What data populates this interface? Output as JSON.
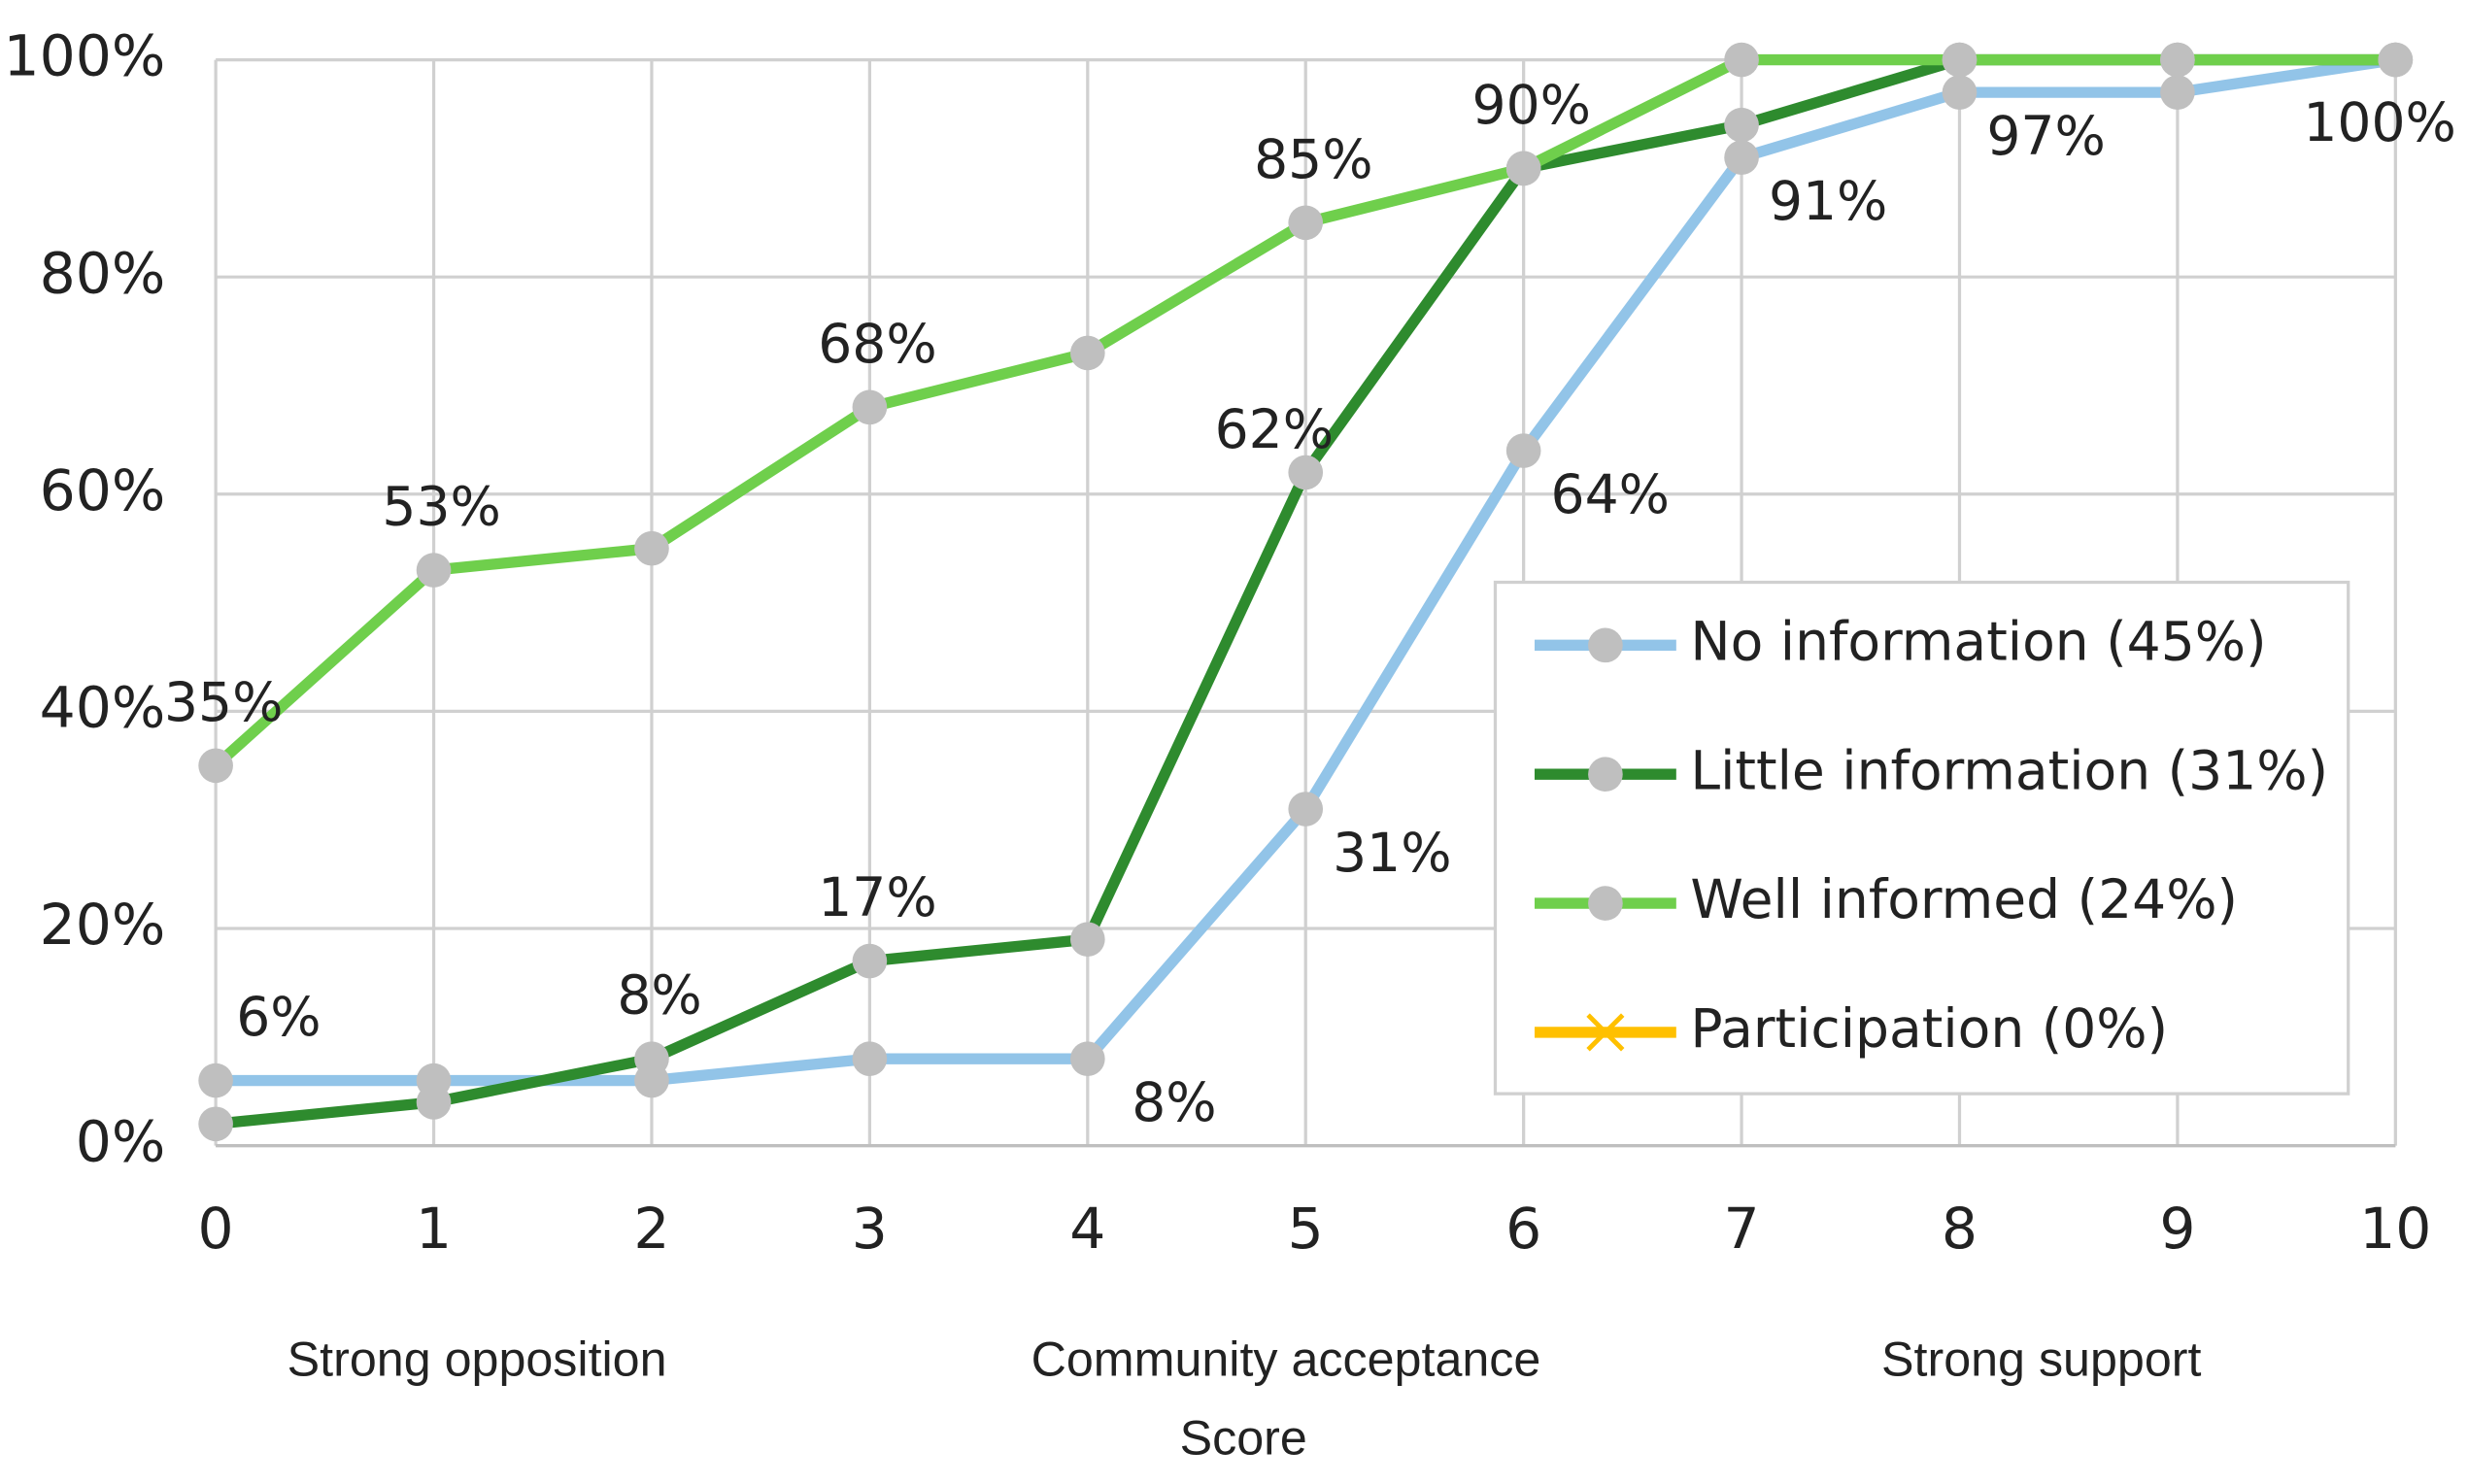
{
  "chart_data": {
    "type": "line",
    "x": [
      0,
      1,
      2,
      3,
      4,
      5,
      6,
      7,
      8,
      9,
      10
    ],
    "xlim": [
      0,
      10
    ],
    "xticks": [
      0,
      1,
      2,
      3,
      4,
      5,
      6,
      7,
      8,
      9,
      10
    ],
    "ylim": [
      0,
      100
    ],
    "yticks": [
      {
        "value": 0,
        "label": "0%"
      },
      {
        "value": 20,
        "label": "20%"
      },
      {
        "value": 40,
        "label": "40%"
      },
      {
        "value": 60,
        "label": "60%"
      },
      {
        "value": 80,
        "label": "80%"
      },
      {
        "value": 100,
        "label": "100%"
      }
    ],
    "grid": true,
    "xlabel": [
      "Community acceptance",
      "Score"
    ],
    "annotations": [
      "Strong opposition",
      "Strong support"
    ],
    "legend": "right",
    "series": [
      {
        "name": "No information (45%)",
        "color": "#92c4e8",
        "marker": "circle",
        "values": [
          6,
          6,
          6,
          8,
          8,
          31,
          64,
          91,
          97,
          97,
          100
        ],
        "value_labels": [
          "6%",
          null,
          null,
          null,
          "8%",
          "31%",
          "64%",
          "91%",
          "97%",
          null,
          "100%"
        ]
      },
      {
        "name": "Little information (31%)",
        "color": "#2e8b2e",
        "marker": "circle",
        "values": [
          2,
          4,
          8,
          17,
          19,
          62,
          90,
          94,
          100,
          100,
          100
        ],
        "value_labels": [
          null,
          null,
          "8%",
          "17%",
          null,
          "62%",
          null,
          null,
          null,
          null,
          null
        ]
      },
      {
        "name": "Well informed (24%)",
        "color": "#6fcf4c",
        "marker": "circle",
        "values": [
          35,
          53,
          55,
          68,
          73,
          85,
          90,
          100,
          100,
          100,
          100
        ],
        "value_labels": [
          "35%",
          "53%",
          null,
          "68%",
          null,
          "85%",
          "90%",
          null,
          null,
          null,
          null
        ]
      },
      {
        "name": "Participation (0%)",
        "color": "#ffc000",
        "marker": "x",
        "values": [
          null,
          null,
          null,
          null,
          null,
          null,
          null,
          null,
          null,
          null,
          null
        ]
      }
    ]
  }
}
